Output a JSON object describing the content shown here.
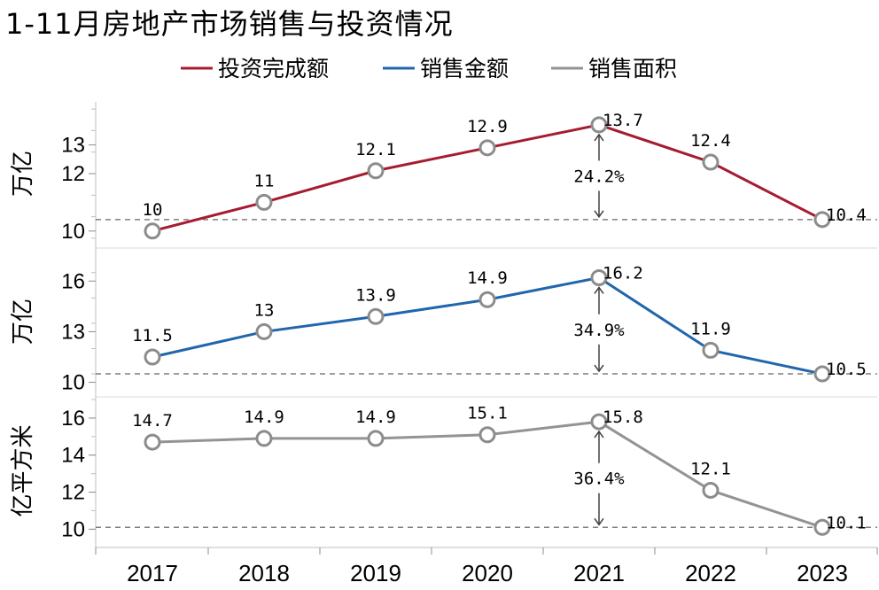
{
  "title": "1-11月房地产市场销售与投资情况",
  "chart_data": {
    "type": "line",
    "title": "1-11月房地产市场销售与投资情况",
    "categories": [
      "2017",
      "2018",
      "2019",
      "2020",
      "2021",
      "2022",
      "2023"
    ],
    "legend_position": "top",
    "series": [
      {
        "name": "投资完成额",
        "color": "#a51c30",
        "ylabel": "万亿",
        "ylim": [
          9.5,
          14.5
        ],
        "yticks": [
          10,
          12,
          13
        ],
        "values": [
          10.0,
          11.0,
          12.1,
          12.9,
          13.7,
          12.4,
          10.4
        ],
        "labels": [
          "10",
          "11",
          "12.1",
          "12.9",
          "13.7",
          "12.4",
          "10.4"
        ],
        "baseline": 10.4,
        "peak_change": "24.2%"
      },
      {
        "name": "销售金额",
        "color": "#2166ac",
        "ylabel": "万亿",
        "ylim": [
          9.4,
          17.8
        ],
        "yticks": [
          10,
          13,
          16
        ],
        "values": [
          11.5,
          13.0,
          13.9,
          14.9,
          16.2,
          11.9,
          10.5
        ],
        "labels": [
          "11.5",
          "13",
          "13.9",
          "14.9",
          "16.2",
          "11.9",
          "10.5"
        ],
        "baseline": 10.5,
        "peak_change": "34.9%"
      },
      {
        "name": "销售面积",
        "color": "#939393",
        "ylabel": "亿平方米",
        "ylim": [
          9.3,
          17.0
        ],
        "yticks": [
          10,
          12,
          14,
          16
        ],
        "values": [
          14.7,
          14.9,
          14.9,
          15.1,
          15.8,
          12.1,
          10.1
        ],
        "labels": [
          "14.7",
          "14.9",
          "14.9",
          "15.1",
          "15.8",
          "12.1",
          "10.1"
        ],
        "baseline": 10.1,
        "peak_change": "36.4%"
      }
    ]
  }
}
